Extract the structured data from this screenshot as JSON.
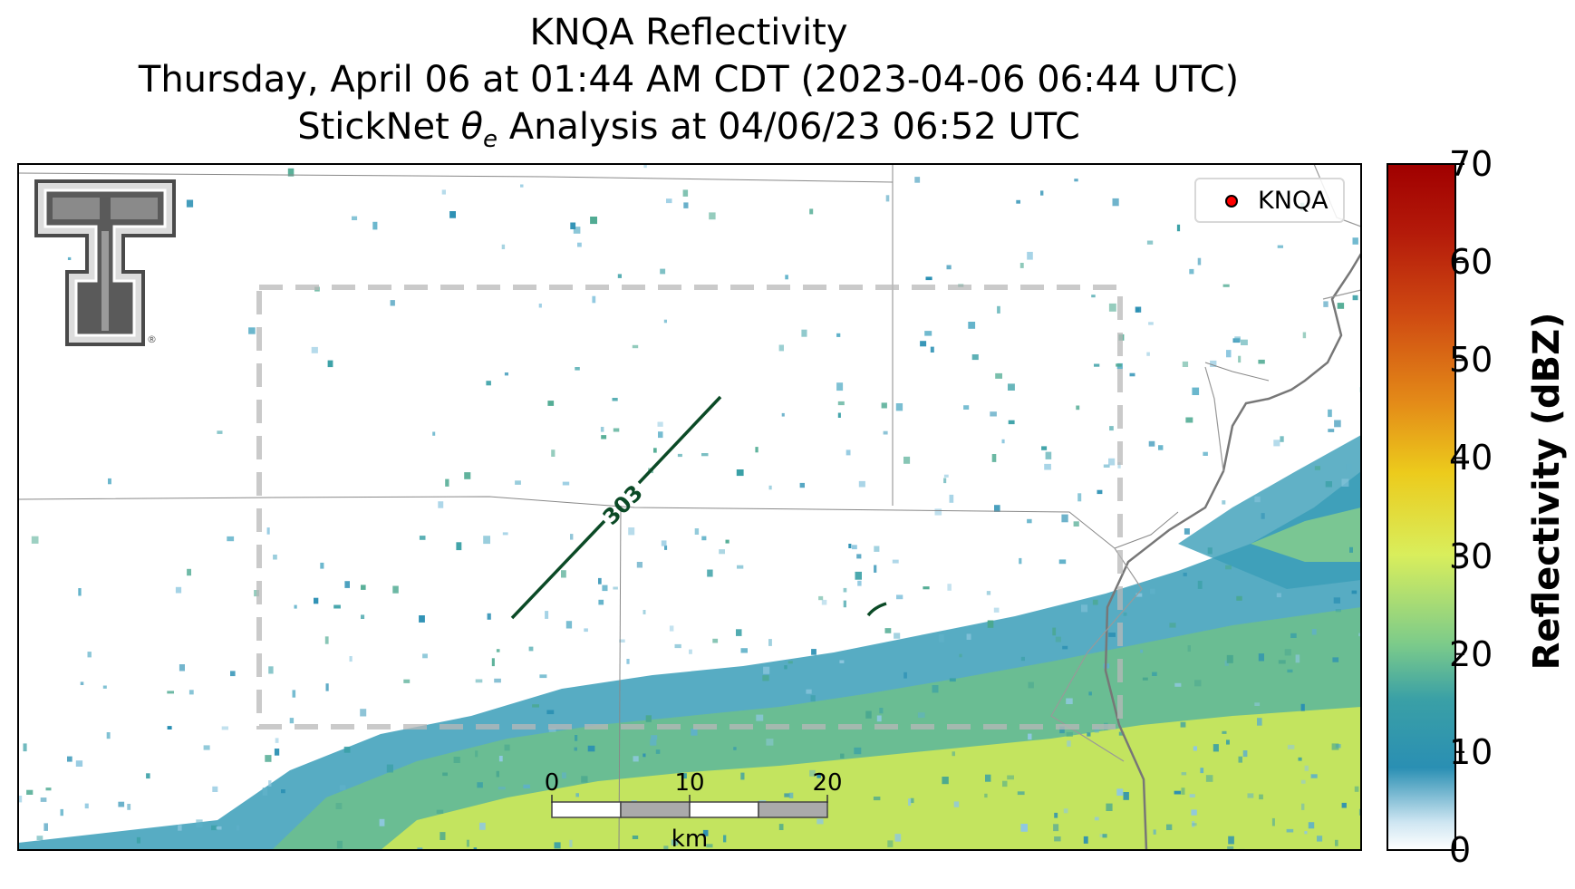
{
  "title_lines": {
    "line1": "KNQA Reflectivity",
    "line2": "Thursday, April 06 at 01:44 AM CDT (2023-04-06 06:44 UTC)",
    "line3_pre": "StickNet ",
    "line3_theta": "θ",
    "line3_sub": "e",
    "line3_post": " Analysis at 04/06/23 06:52 UTC"
  },
  "legend": {
    "label": "KNQA",
    "marker_color": "#ff0000"
  },
  "colorbar": {
    "label": "Reflectivity (dBZ)",
    "ticks": [
      "70",
      "60",
      "50",
      "40",
      "30",
      "20",
      "10",
      "0"
    ],
    "min": 0,
    "max": 70,
    "colors": [
      "#ffffff",
      "#2a8fb3",
      "#58b39a",
      "#cde85a",
      "#e8c21c",
      "#e2781a",
      "#c42e0e",
      "#a80000"
    ]
  },
  "contour": {
    "label": "303",
    "color": "#0b4a26"
  },
  "scale_bar": {
    "ticks": [
      "0",
      "10",
      "20"
    ],
    "unit": "km"
  },
  "logo": {
    "icon": "texas-tech-double-t-logo",
    "mark": "®"
  },
  "map": {
    "analysis_box": "dashed-gray",
    "radar_colormap": "reflectivity"
  }
}
